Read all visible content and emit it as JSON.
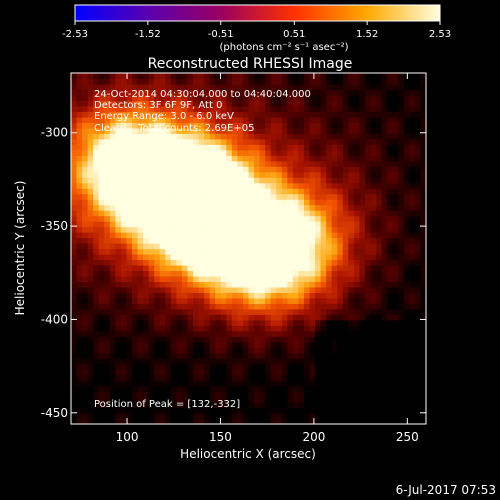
{
  "chart_data": {
    "type": "heatmap",
    "title": "Reconstructed RHESSI Image",
    "xlabel": "Heliocentric X (arcsec)",
    "ylabel": "Heliocentric Y (arcsec)",
    "xlim": [
      70,
      260
    ],
    "ylim": [
      -456,
      -268
    ],
    "xticks": [
      "100",
      "150",
      "200",
      "250"
    ],
    "yticks": [
      "-300",
      "-350",
      "-400",
      "-450"
    ],
    "colorbar": {
      "ticks": [
        "-2.53",
        "-1.52",
        "-0.51",
        "0.51",
        "1.52",
        "2.53"
      ],
      "label": "(photons cm⁻² s⁻¹ asec⁻²)",
      "min": -2.53,
      "max": 2.53,
      "colors": [
        "#0000ff",
        "#6a00a8",
        "#b00040",
        "#ff3a00",
        "#ffb200",
        "#ffffe0"
      ]
    },
    "annotations": [
      "24-Oct-2014 04:30:04.000 to 04:40:04.000",
      "Detectors: 3F 6F 9F, Att 0",
      "Energy Range: 3.0 - 6.0 keV",
      "Clean     Total counts: 2.69E+05",
      "Position of Peak = [132,-332]"
    ],
    "peaks": [
      {
        "x": 132,
        "y": -332,
        "amp": 2.53
      },
      {
        "x": 98,
        "y": -316,
        "amp": 2.2
      },
      {
        "x": 172,
        "y": -365,
        "amp": 2.3
      },
      {
        "x": 143,
        "y": -348,
        "amp": 1.9
      },
      {
        "x": 195,
        "y": -358,
        "amp": 1.2
      }
    ],
    "footer": "6-Jul-2017 07:53"
  }
}
